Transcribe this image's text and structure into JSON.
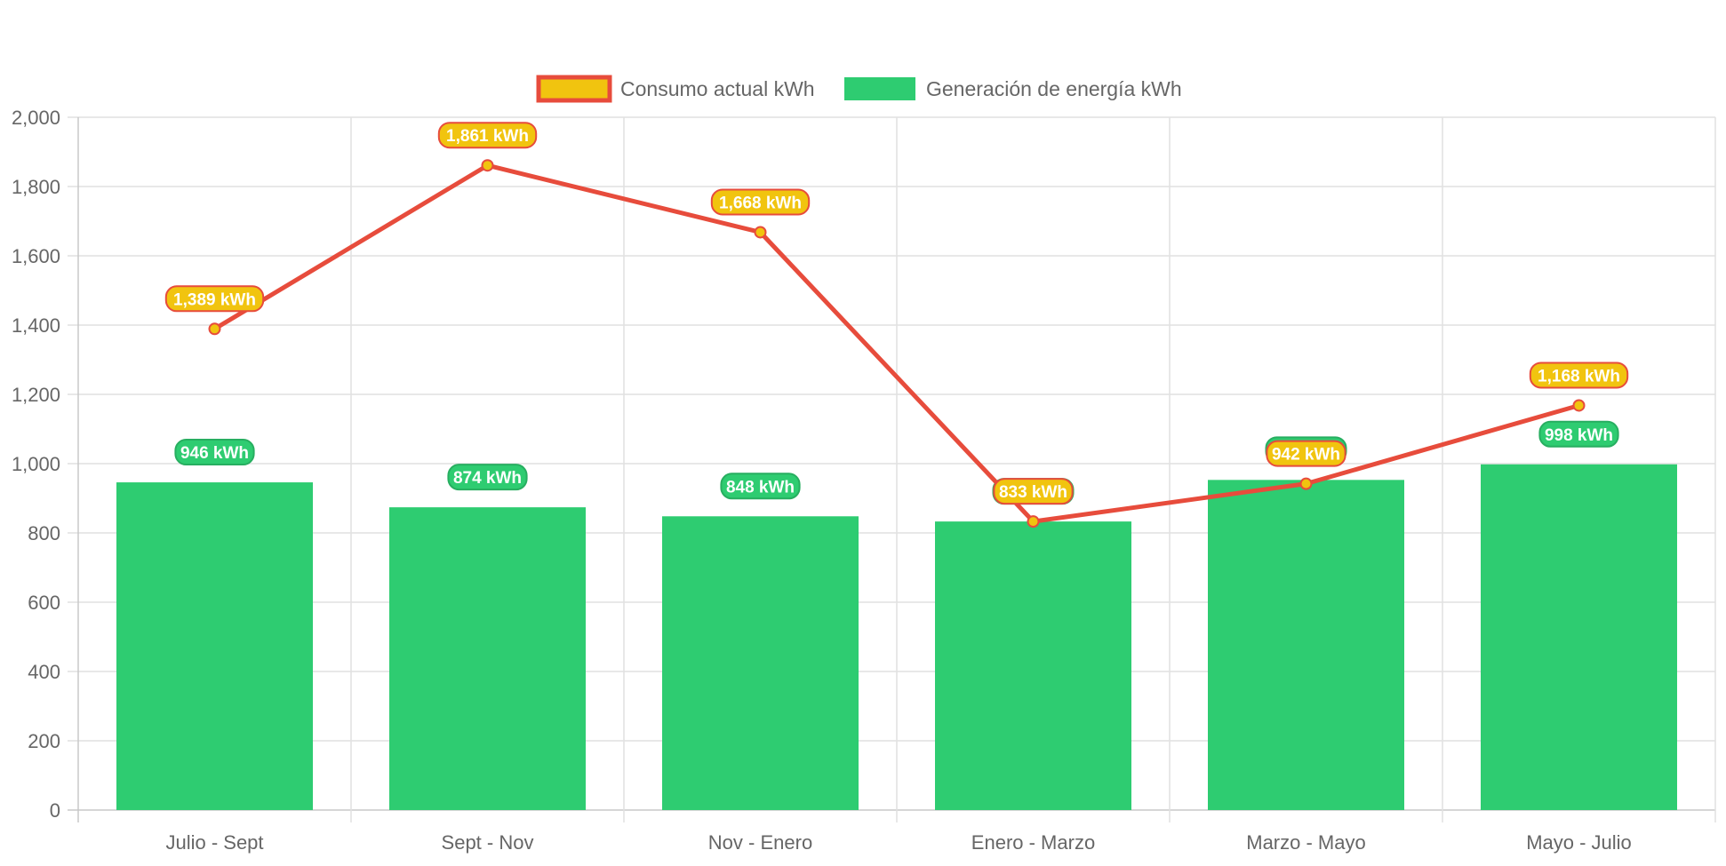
{
  "chart_data": {
    "type": "bar",
    "categories": [
      "Julio - Sept",
      "Sept - Nov",
      "Nov - Enero",
      "Enero - Marzo",
      "Marzo - Mayo",
      "Mayo - Julio"
    ],
    "series": [
      {
        "name": "Consumo actual kWh",
        "type": "line",
        "values": [
          1389,
          1861,
          1668,
          833,
          942,
          1168
        ],
        "labels": [
          "1,389 kWh",
          "1,861 kWh",
          "1,668 kWh",
          "833 kWh",
          "942 kWh",
          "1,168 kWh"
        ],
        "line_color": "#e74c3c",
        "fill_color": "#f1c40f"
      },
      {
        "name": "Generación de energía kWh",
        "type": "bar",
        "values": [
          946,
          874,
          848,
          833,
          953,
          998
        ],
        "labels": [
          "946 kWh",
          "874 kWh",
          "848 kWh",
          "",
          "",
          "998 kWh"
        ],
        "color": "#2ecc71"
      }
    ],
    "ylim": [
      0,
      2000
    ],
    "yticks": [
      "0",
      "200",
      "400",
      "600",
      "800",
      "1,000",
      "1,200",
      "1,400",
      "1,600",
      "1,800",
      "2,000"
    ],
    "ytick_values": [
      0,
      200,
      400,
      600,
      800,
      1000,
      1200,
      1400,
      1600,
      1800,
      2000
    ],
    "grid": true,
    "legend_position": "top-center",
    "title": "",
    "xlabel": "",
    "ylabel": ""
  }
}
